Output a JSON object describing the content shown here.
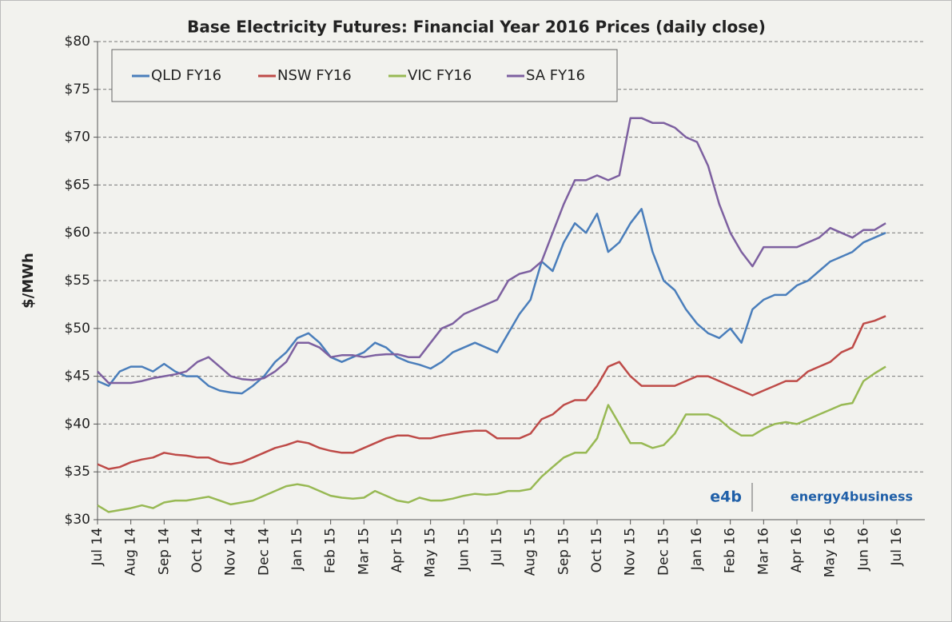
{
  "chart_data": {
    "type": "line",
    "title": "Base Electricity Futures:  Financial Year 2016 Prices (daily close)",
    "y_label": "$/MWh",
    "logo": {
      "mark": "e4b",
      "name": "energy4business"
    },
    "legend": "top-left",
    "grid": true,
    "ylim": [
      30,
      80
    ],
    "yticks": [
      {
        "value": 30,
        "label": "$30"
      },
      {
        "value": 35,
        "label": "$35"
      },
      {
        "value": 40,
        "label": "$40"
      },
      {
        "value": 45,
        "label": "$45"
      },
      {
        "value": 50,
        "label": "$50"
      },
      {
        "value": 55,
        "label": "$55"
      },
      {
        "value": 60,
        "label": "$60"
      },
      {
        "value": 65,
        "label": "$65"
      },
      {
        "value": 70,
        "label": "$70"
      },
      {
        "value": 75,
        "label": "$75"
      },
      {
        "value": 80,
        "label": "$80"
      }
    ],
    "categories": [
      "Jul 14",
      null,
      null,
      "Aug 14",
      null,
      null,
      "Sep 14",
      null,
      null,
      "Oct 14",
      null,
      null,
      "Nov 14",
      null,
      null,
      "Dec 14",
      null,
      null,
      "Jan 15",
      null,
      null,
      "Feb 15",
      null,
      null,
      "Mar 15",
      null,
      null,
      "Apr 15",
      null,
      null,
      "May 15",
      null,
      null,
      "Jun 15",
      null,
      null,
      "Jul 15",
      null,
      null,
      "Aug 15",
      null,
      null,
      "Sep 15",
      null,
      null,
      "Oct 15",
      null,
      null,
      "Nov 15",
      null,
      null,
      "Dec 15",
      null,
      null,
      "Jan 16",
      null,
      null,
      "Feb 16",
      null,
      null,
      "Mar 16",
      null,
      null,
      "Apr 16",
      null,
      null,
      "May 16",
      null,
      null,
      "Jun 16",
      null,
      null,
      "Jul 16"
    ],
    "series": [
      {
        "name": "QLD FY16",
        "color": "#4a7ebb",
        "values": [
          44.5,
          44,
          45.5,
          46,
          46,
          45.5,
          46.3,
          45.5,
          45,
          45,
          44,
          43.5,
          43.3,
          43.2,
          44,
          45,
          46.5,
          47.5,
          49,
          49.5,
          48.5,
          47,
          46.5,
          47,
          47.5,
          48.5,
          48,
          47,
          46.5,
          46.2,
          45.8,
          46.5,
          47.5,
          48,
          48.5,
          48,
          47.5,
          49.5,
          51.5,
          53,
          57,
          56,
          59,
          61,
          60,
          62,
          58,
          59,
          61,
          62.5,
          58,
          55,
          54,
          52,
          50.5,
          49.5,
          49,
          50,
          48.5,
          52,
          53,
          53.5,
          53.5,
          54.5,
          55,
          56,
          57,
          57.5,
          58,
          59,
          59.5,
          60,
          null
        ]
      },
      {
        "name": "NSW FY16",
        "color": "#be4b48",
        "values": [
          35.8,
          35.3,
          35.5,
          36,
          36.3,
          36.5,
          37,
          36.8,
          36.7,
          36.5,
          36.5,
          36,
          35.8,
          36,
          36.5,
          37,
          37.5,
          37.8,
          38.2,
          38,
          37.5,
          37.2,
          37,
          37,
          37.5,
          38,
          38.5,
          38.8,
          38.8,
          38.5,
          38.5,
          38.8,
          39,
          39.2,
          39.3,
          39.3,
          38.5,
          38.5,
          38.5,
          39,
          40.5,
          41,
          42,
          42.5,
          42.5,
          44,
          46,
          46.5,
          45,
          44,
          44,
          44,
          44,
          44.5,
          45,
          45,
          44.5,
          44,
          43.5,
          43,
          43.5,
          44,
          44.5,
          44.5,
          45.5,
          46,
          46.5,
          47.5,
          48,
          50.5,
          50.8,
          51.3,
          null
        ]
      },
      {
        "name": "VIC FY16",
        "color": "#98b954",
        "values": [
          31.5,
          30.8,
          31,
          31.2,
          31.5,
          31.2,
          31.8,
          32,
          32,
          32.2,
          32.4,
          32,
          31.6,
          31.8,
          32,
          32.5,
          33,
          33.5,
          33.7,
          33.5,
          33,
          32.5,
          32.3,
          32.2,
          32.3,
          33,
          32.5,
          32,
          31.8,
          32.3,
          32,
          32,
          32.2,
          32.5,
          32.7,
          32.6,
          32.7,
          33,
          33,
          33.2,
          34.5,
          35.5,
          36.5,
          37,
          37,
          38.5,
          42,
          40,
          38,
          38,
          37.5,
          37.8,
          39,
          41,
          41,
          41,
          40.5,
          39.5,
          38.8,
          38.8,
          39.5,
          40,
          40.2,
          40,
          40.5,
          41,
          41.5,
          42,
          42.2,
          44.5,
          45.3,
          46,
          null
        ]
      },
      {
        "name": "SA FY16",
        "color": "#7d60a0",
        "values": [
          45.5,
          44.3,
          44.3,
          44.3,
          44.5,
          44.8,
          45,
          45.2,
          45.5,
          46.5,
          47,
          46,
          45,
          44.7,
          44.6,
          44.8,
          45.5,
          46.5,
          48.5,
          48.5,
          48,
          47,
          47.2,
          47.2,
          47,
          47.2,
          47.3,
          47.3,
          47,
          47,
          48.5,
          50,
          50.5,
          51.5,
          52,
          52.5,
          53,
          55,
          55.7,
          56,
          57,
          60,
          63,
          65.5,
          65.5,
          66,
          65.5,
          66,
          72,
          72,
          71.5,
          71.5,
          71,
          70,
          69.5,
          67,
          63,
          60,
          58,
          56.5,
          58.5,
          58.5,
          58.5,
          58.5,
          59,
          59.5,
          60.5,
          60,
          59.5,
          60.3,
          60.3,
          61,
          null
        ]
      }
    ]
  }
}
